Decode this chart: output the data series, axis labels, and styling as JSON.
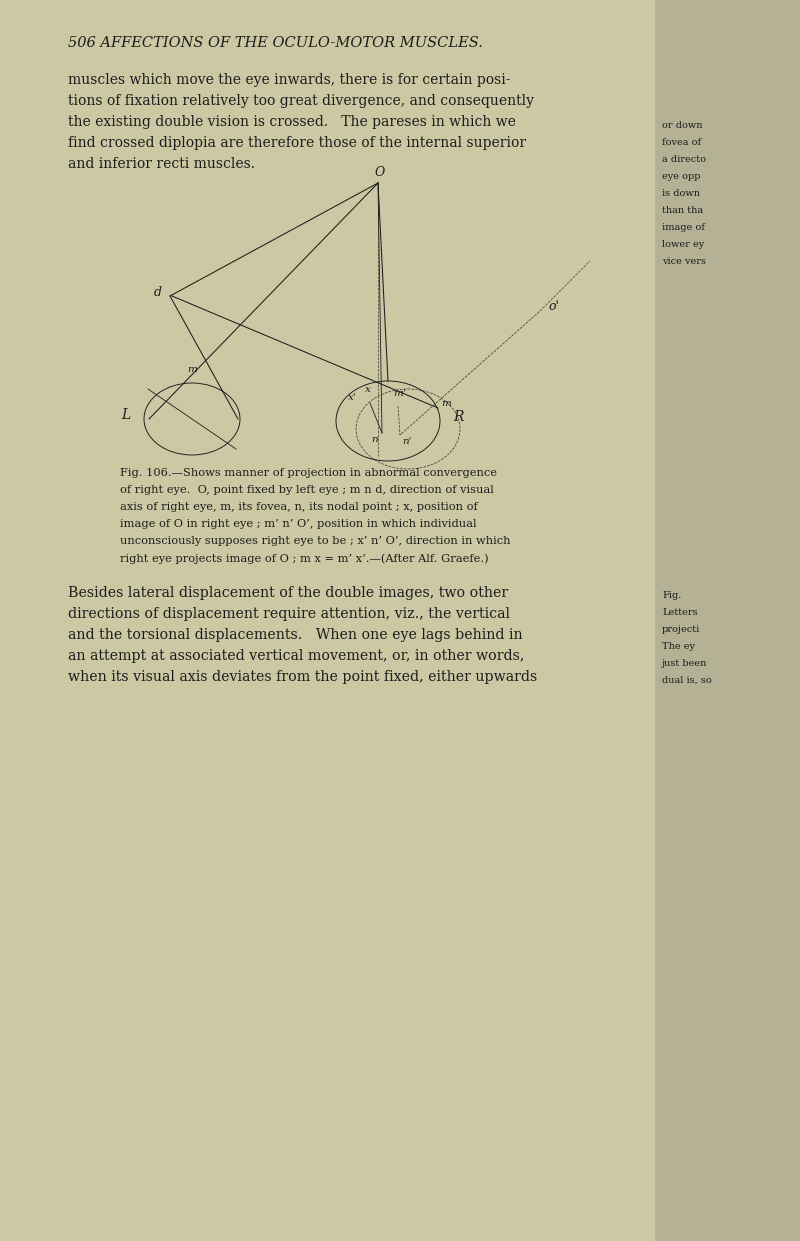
{
  "bg_color": "#c8c4a0",
  "page_bg": "#ccc8a4",
  "right_bg": "#b5b195",
  "text_color": "#1c1c1c",
  "title_text": "506 AFFECTIONS OF THE OCULO-MOTOR MUSCLES.",
  "para1_lines": [
    "muscles which move the eye inwards, there is for certain posi-",
    "tions of fixation relatively too great divergence, and consequently",
    "the existing double vision is crossed.   The pareses in which we",
    "find crossed diplopia are therefore those of the internal superior",
    "and inferior recti muscles."
  ],
  "caption_lines": [
    "Fig. 106.—Shows manner of projection in abnormal convergence",
    "of right eye.  O, point fixed by left eye ; m n d, direction of visual",
    "axis of right eye, m, its fovea, n, its nodal point ; x, position of",
    "image of O in right eye ; m’ n’ O’, position in which individual",
    "unconsciously supposes right eye to be ; x’ n’ O’, direction in which",
    "right eye projects image of O ; m x = m’ x’.—(After Alf. Graefe.)"
  ],
  "para2_lines": [
    "Besides lateral displacement of the double images, two other",
    "directions of displacement require attention, viz., the vertical",
    "and the torsional displacements.   When one eye lags behind in",
    "an attempt at associated vertical movement, or, in other words,",
    "when its visual axis deviates from the point fixed, either upwards"
  ],
  "right_margin_top": [
    "or down",
    "fovea of",
    "a directo",
    "eye opp",
    "is down",
    "than tha",
    "image of",
    "lower ey",
    "vice vers"
  ],
  "right_margin_bot": [
    "Fig.",
    "Letters",
    "projecti",
    "The ey",
    "just been",
    "dual is, so"
  ]
}
